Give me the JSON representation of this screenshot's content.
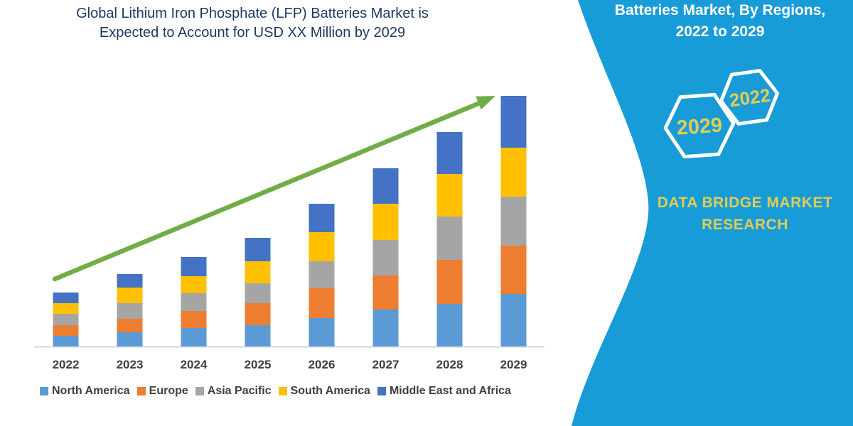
{
  "title": {
    "line1": "Global Lithium Iron Phosphate (LFP) Batteries Market is",
    "line2": "Expected to Account for USD XX Million by 2029",
    "color": "#1F3864"
  },
  "panel": {
    "bg_color": "#189CD8",
    "accent_text_color": "#E2CC54",
    "heading": {
      "line1": "Batteries Market, By Regions,",
      "line2": "2022 to 2029"
    },
    "hexagons": [
      {
        "label": "2029"
      },
      {
        "label": "2022"
      }
    ],
    "brand": {
      "line1": "DATA BRIDGE MARKET",
      "line2": "RESEARCH"
    }
  },
  "chart_data": {
    "type": "bar",
    "stacked": true,
    "title": "Global Lithium Iron Phosphate (LFP) Batteries Market is Expected to Account for USD XX Million by 2029",
    "xlabel": "",
    "ylabel": "",
    "grid": false,
    "y_axis_shown": false,
    "legend_position": "bottom",
    "categories": [
      "2022",
      "2023",
      "2024",
      "2025",
      "2026",
      "2027",
      "2028",
      "2029"
    ],
    "series": [
      {
        "name": "North America",
        "color": "#5B9BD5",
        "values": [
          15,
          20,
          26,
          30,
          40,
          52,
          60,
          74
        ]
      },
      {
        "name": "Europe",
        "color": "#ED7D31",
        "values": [
          15,
          19,
          24,
          31,
          42,
          48,
          62,
          68
        ]
      },
      {
        "name": "Asia Pacific",
        "color": "#A5A5A5",
        "values": [
          16,
          22,
          25,
          28,
          38,
          50,
          61,
          69
        ]
      },
      {
        "name": "South America",
        "color": "#FFC000",
        "values": [
          15,
          22,
          24,
          31,
          41,
          51,
          60,
          69
        ]
      },
      {
        "name": "Middle East and Africa",
        "color": "#4472C4",
        "values": [
          15,
          19,
          27,
          33,
          40,
          50,
          59,
          73
        ]
      }
    ],
    "ylim": [
      0,
      380
    ],
    "trend_arrow": {
      "color": "#70AD47",
      "from_category": "2022",
      "to_category": "2029"
    },
    "axis_line_color": "#D9D9D9",
    "label_color": "#3F3F3F"
  }
}
